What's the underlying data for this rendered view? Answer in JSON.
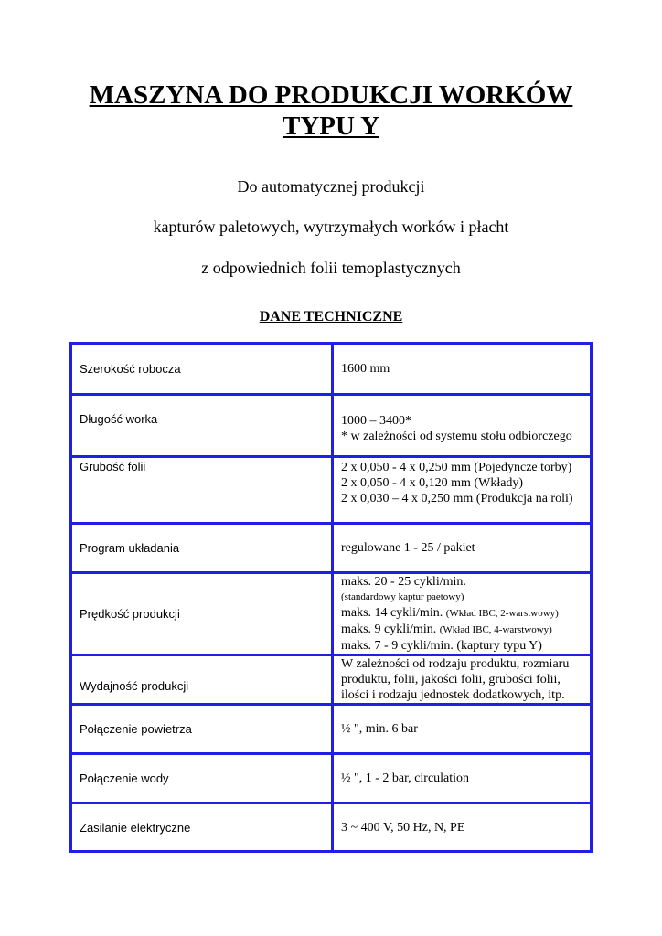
{
  "title": {
    "line1": "MASZYNA DO PRODUKCJI WORKÓW",
    "line2": "TYPU Y"
  },
  "subtitle": [
    "Do automatycznej produkcji",
    "kapturów paletowych, wytrzymałych worków i płacht",
    "z odpowiednich folii temoplastycznych"
  ],
  "section_heading": "DANE TECHNICZNE",
  "rows": [
    {
      "label": "Szerokość robocza",
      "value": [
        "1600 mm"
      ]
    },
    {
      "label": "Długość worka",
      "value": [
        "1000 – 3400*",
        "* w zależności od systemu stołu odbiorczego"
      ]
    },
    {
      "label": "Grubość folii",
      "value": [
        "2 x 0,050 - 4 x 0,250 mm  (Pojedyncze torby)",
        "2 x 0,050 - 4 x 0,120 mm  (Wkłady)",
        "2 x 0,030 – 4 x 0,250 mm (Produkcja na roli)"
      ]
    },
    {
      "label": "Program układania",
      "value": [
        "regulowane 1 - 25 / pakiet"
      ]
    },
    {
      "label": "Prędkość produkcji",
      "value": [
        "maks.  20 - 25 cykli/min.",
        "(standardowy kaptur paetowy)",
        "maks.  14 cykli/min.",
        "(Wkład IBC, 2-warstwowy)",
        "maks.    9 cykli/min.",
        "(Wkład IBC, 4-warstwowy)",
        "maks.    7 - 9 cykli/min. (kaptury typu Y)"
      ]
    },
    {
      "label": "Wydajność produkcji",
      "value": [
        "W zależności od rodzaju produktu, rozmiaru",
        "produktu, folii, jakości folii, grubości folii,",
        "ilości i rodzaju jednostek dodatkowych, itp."
      ]
    },
    {
      "label": "Połączenie powietrza",
      "value": [
        "½ \", min. 6 bar"
      ]
    },
    {
      "label": "Połączenie wody",
      "value": [
        "½ \", 1 - 2 bar, circulation"
      ]
    },
    {
      "label": "Zasilanie elektryczne",
      "value": [
        "3 ~ 400 V, 50 Hz, N, PE"
      ]
    }
  ],
  "colors": {
    "table_border": "#1f1fe6"
  }
}
